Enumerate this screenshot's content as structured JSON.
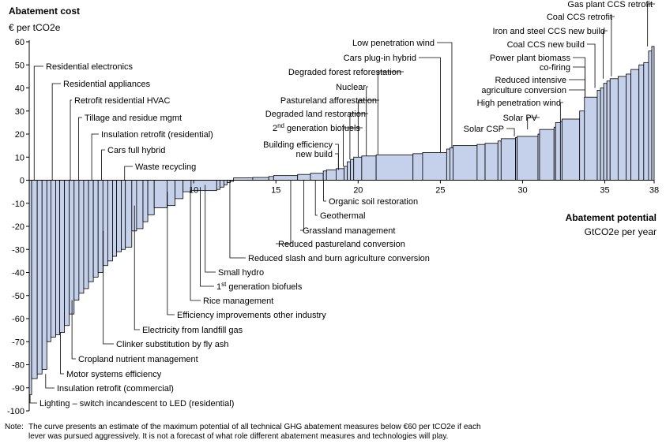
{
  "chart_data": {
    "type": "bar",
    "variant": "marginal-abatement-cost-curve",
    "title": "Abatement cost",
    "ylabel": "€ per tCO2e",
    "xlabel": "Abatement potential",
    "xunit": "GtCO2e per year",
    "ylim": [
      -100,
      60
    ],
    "xlim": [
      0,
      38
    ],
    "yticks": [
      60,
      50,
      40,
      30,
      20,
      10,
      0,
      -10,
      -20,
      -30,
      -40,
      -50,
      -60,
      -70,
      -80,
      -90,
      -100
    ],
    "xticks": [
      10,
      15,
      20,
      25,
      30,
      35,
      38
    ],
    "bar_fill": "#c5d1ea",
    "bar_stroke": "#000000",
    "note_prefix": "Note:",
    "note_lines": [
      "The curve presents an estimate of the maximum potential of all technical GHG abatement measures below €60 per tCO2e if each",
      "lever was pursued aggressively. It is not a forecast of what role different abatement measures and technologies will play."
    ],
    "bars": [
      {
        "w": 0.15,
        "cost": -93
      },
      {
        "w": 0.35,
        "cost": -86
      },
      {
        "w": 0.3,
        "cost": -84
      },
      {
        "w": 0.3,
        "cost": -82
      },
      {
        "w": 0.25,
        "cost": -70
      },
      {
        "w": 0.3,
        "cost": -68
      },
      {
        "w": 0.25,
        "cost": -67
      },
      {
        "w": 0.3,
        "cost": -66
      },
      {
        "w": 0.3,
        "cost": -63
      },
      {
        "w": 0.3,
        "cost": -58
      },
      {
        "w": 0.3,
        "cost": -52
      },
      {
        "w": 0.3,
        "cost": -49
      },
      {
        "w": 0.3,
        "cost": -47
      },
      {
        "w": 0.3,
        "cost": -44
      },
      {
        "w": 0.3,
        "cost": -42
      },
      {
        "w": 0.3,
        "cost": -40
      },
      {
        "w": 0.3,
        "cost": -37
      },
      {
        "w": 0.3,
        "cost": -35
      },
      {
        "w": 0.25,
        "cost": -33
      },
      {
        "w": 0.3,
        "cost": -31
      },
      {
        "w": 0.25,
        "cost": -30
      },
      {
        "w": 0.4,
        "cost": -29
      },
      {
        "w": 0.3,
        "cost": -22
      },
      {
        "w": 0.4,
        "cost": -21
      },
      {
        "w": 0.3,
        "cost": -18
      },
      {
        "w": 0.4,
        "cost": -15
      },
      {
        "w": 0.8,
        "cost": -12
      },
      {
        "w": 0.5,
        "cost": -11
      },
      {
        "w": 0.5,
        "cost": -8
      },
      {
        "w": 0.5,
        "cost": -5
      },
      {
        "w": 1.6,
        "cost": -4.5
      },
      {
        "w": 0.2,
        "cost": -4
      },
      {
        "w": 0.25,
        "cost": -3
      },
      {
        "w": 0.2,
        "cost": -2
      },
      {
        "w": 0.2,
        "cost": -1
      },
      {
        "w": 0.2,
        "cost": -0.5
      },
      {
        "w": 1.2,
        "cost": 1
      },
      {
        "w": 1.0,
        "cost": 1.2
      },
      {
        "w": 0.3,
        "cost": 1.6
      },
      {
        "w": 1.5,
        "cost": 2
      },
      {
        "w": 0.8,
        "cost": 2.5
      },
      {
        "w": 0.8,
        "cost": 3
      },
      {
        "w": 0.2,
        "cost": 4
      },
      {
        "w": 0.6,
        "cost": 4.5
      },
      {
        "w": 0.5,
        "cost": 5
      },
      {
        "w": 0.2,
        "cost": 6
      },
      {
        "w": 0.2,
        "cost": 8
      },
      {
        "w": 0.2,
        "cost": 9
      },
      {
        "w": 0.5,
        "cost": 10
      },
      {
        "w": 0.9,
        "cost": 10.5
      },
      {
        "w": 2.3,
        "cost": 11
      },
      {
        "w": 0.6,
        "cost": 11.5
      },
      {
        "w": 1.5,
        "cost": 12
      },
      {
        "w": 0.2,
        "cost": 13.5
      },
      {
        "w": 0.2,
        "cost": 14
      },
      {
        "w": 1.5,
        "cost": 15
      },
      {
        "w": 0.5,
        "cost": 15.5
      },
      {
        "w": 0.8,
        "cost": 16
      },
      {
        "w": 0.2,
        "cost": 17
      },
      {
        "w": 0.9,
        "cost": 18
      },
      {
        "w": 0.1,
        "cost": 18.5
      },
      {
        "w": 1.3,
        "cost": 19
      },
      {
        "w": 0.1,
        "cost": 20
      },
      {
        "w": 0.9,
        "cost": 22
      },
      {
        "w": 0.1,
        "cost": 23
      },
      {
        "w": 0.3,
        "cost": 25
      },
      {
        "w": 0.1,
        "cost": 25.5
      },
      {
        "w": 1.1,
        "cost": 26.5
      },
      {
        "w": 0.3,
        "cost": 30
      },
      {
        "w": 0.8,
        "cost": 36
      },
      {
        "w": 0.2,
        "cost": 39
      },
      {
        "w": 0.2,
        "cost": 40
      },
      {
        "w": 0.2,
        "cost": 42
      },
      {
        "w": 0.2,
        "cost": 43
      },
      {
        "w": 0.5,
        "cost": 44
      },
      {
        "w": 0.5,
        "cost": 45
      },
      {
        "w": 0.3,
        "cost": 46
      },
      {
        "w": 0.5,
        "cost": 48
      },
      {
        "w": 0.3,
        "cost": 50
      },
      {
        "w": 0.3,
        "cost": 51
      },
      {
        "w": 0.2,
        "cost": 56
      },
      {
        "w": 0.15,
        "cost": 58
      }
    ],
    "annotations": [
      {
        "text": "Residential electronics",
        "x": 0.3,
        "anchor": "start",
        "value": -86
      },
      {
        "text": "Residential appliances",
        "x": 1.4,
        "anchor": "start",
        "value": -68
      },
      {
        "text": "Retrofit residential HVAC",
        "x": 2.5,
        "anchor": "start",
        "value": -58
      },
      {
        "text": "Tillage and residue mgmt",
        "x": 3.0,
        "anchor": "start",
        "value": -47
      },
      {
        "text": "Insulation retrofit (residential)",
        "x": 3.8,
        "anchor": "start",
        "value": -35
      },
      {
        "text": "Cars full hybrid",
        "x": 4.4,
        "anchor": "start",
        "value": -30
      },
      {
        "text": "Waste recycling",
        "x": 5.8,
        "anchor": "start",
        "value": -12
      },
      {
        "text": "Lighting – switch incandescent to LED (residential)",
        "x": 0.05,
        "anchor": "start",
        "value": -93
      },
      {
        "text": "Insulation retrofit (commercial)",
        "x": 1.0,
        "anchor": "start",
        "value": -84
      },
      {
        "text": "Motor systems efficiency",
        "x": 1.9,
        "anchor": "start",
        "value": -66
      },
      {
        "text": "Cropland nutrient management",
        "x": 2.6,
        "anchor": "start",
        "value": -52
      },
      {
        "text": "Clinker substitution by fly ash",
        "x": 4.5,
        "anchor": "start",
        "value": -22
      },
      {
        "text": "Electricity from landfill gas",
        "x": 6.4,
        "anchor": "start",
        "value": -11
      },
      {
        "text": "Efficiency improvements other industry",
        "x": 8.4,
        "anchor": "start",
        "value": -5
      },
      {
        "text": "Rice management",
        "x": 9.8,
        "anchor": "start",
        "value": -4
      },
      {
        "text": "1st generation biofuels",
        "x": 10.4,
        "anchor": "start",
        "value": -3
      },
      {
        "text": "Small hydro",
        "x": 10.7,
        "anchor": "start",
        "value": -2
      },
      {
        "text": "Reduced slash and burn agriculture conversion",
        "x": 12.2,
        "anchor": "start",
        "value": 1
      },
      {
        "text": "Reduced pastureland conversion",
        "x": 15.9,
        "anchor": "start",
        "value": 2
      },
      {
        "text": "Grassland management",
        "x": 16.7,
        "anchor": "start",
        "value": 2.5
      },
      {
        "text": "Geothermal",
        "x": 17.4,
        "anchor": "start",
        "value": 3
      },
      {
        "text": "Organic soil restoration",
        "x": 17.9,
        "anchor": "start",
        "value": 4.5
      },
      {
        "text": "Building efficiency",
        "x": 18.8,
        "anchor": "end",
        "value": 4.5
      },
      {
        "text": "new build",
        "x": 18.8,
        "anchor": "end",
        "value": 4.5
      },
      {
        "text": "2nd generation biofuels",
        "x": 19.1,
        "anchor": "end",
        "value": 6
      },
      {
        "text": "Degraded land restoration",
        "x": 19.5,
        "anchor": "end",
        "value": 9
      },
      {
        "text": "Pastureland afforestation",
        "x": 20.0,
        "anchor": "end",
        "value": 10
      },
      {
        "text": "Nuclear",
        "x": 20.5,
        "anchor": "end",
        "value": 10.5
      },
      {
        "text": "Degraded forest reforestation",
        "x": 21.2,
        "anchor": "end",
        "value": 11
      },
      {
        "text": "Cars plug-in hybrid",
        "x": 25.0,
        "anchor": "end",
        "value": 12
      },
      {
        "text": "Low penetration wind",
        "x": 25.7,
        "anchor": "end",
        "value": 14
      },
      {
        "text": "Solar CSP",
        "x": 29.5,
        "anchor": "end",
        "value": 19
      },
      {
        "text": "Solar PV",
        "x": 30.3,
        "anchor": "end",
        "value": 22
      },
      {
        "text": "High penetration wind",
        "x": 32.3,
        "anchor": "end",
        "value": 25
      },
      {
        "text": "Reduced intensive",
        "x": 33.8,
        "anchor": "end",
        "value": 36
      },
      {
        "text": "agriculture conversion",
        "x": 33.8,
        "anchor": "end",
        "value": 36
      },
      {
        "text": "Power plant biomass",
        "x": 33.8,
        "anchor": "end",
        "value": 36
      },
      {
        "text": "co-firing",
        "x": 33.8,
        "anchor": "end",
        "value": 36
      },
      {
        "text": "Coal CCS new build",
        "x": 34.4,
        "anchor": "end",
        "value": 40
      },
      {
        "text": "Iron and steel CCS new build",
        "x": 34.9,
        "anchor": "end",
        "value": 44
      },
      {
        "text": "Coal CCS retrofit",
        "x": 35.4,
        "anchor": "end",
        "value": 45
      },
      {
        "text": "Gas plant CCS retrofit",
        "x": 37.6,
        "anchor": "end",
        "value": 58
      }
    ]
  }
}
